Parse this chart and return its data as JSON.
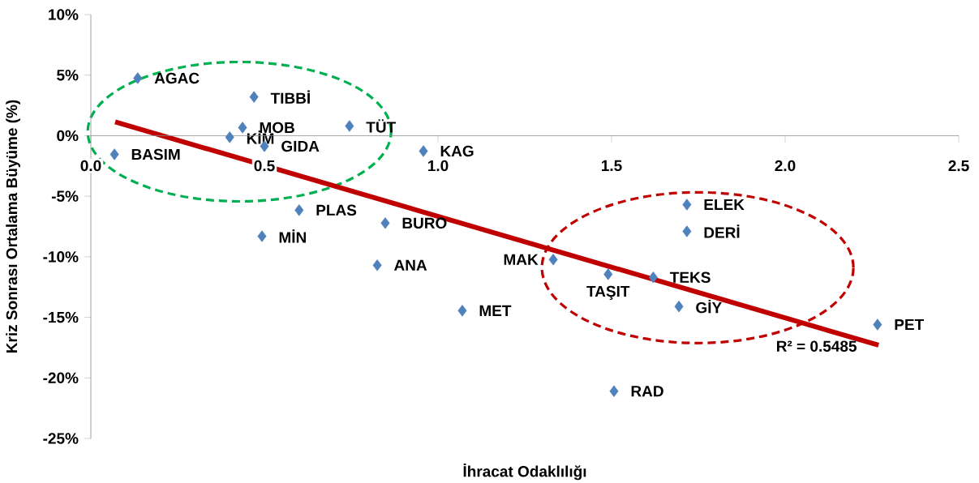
{
  "chart_data": {
    "type": "scatter",
    "xlabel": "İhracat Odaklılığı",
    "ylabel": "Kriz Sonrası Ortalama Büyüme (%)",
    "xlim": [
      0,
      2.5
    ],
    "ylim": [
      -25,
      10
    ],
    "xticks": [
      {
        "value": 0,
        "label": "0.0"
      },
      {
        "value": 0.5,
        "label": "0.5"
      },
      {
        "value": 1,
        "label": "1.0"
      },
      {
        "value": 1.5,
        "label": "1.5"
      },
      {
        "value": 2,
        "label": "2.0"
      },
      {
        "value": 2.5,
        "label": "2.5"
      }
    ],
    "yticks": [
      {
        "value": -25,
        "label": "-25%"
      },
      {
        "value": -20,
        "label": "-20%"
      },
      {
        "value": -15,
        "label": "-15%"
      },
      {
        "value": -10,
        "label": "-10%"
      },
      {
        "value": -5,
        "label": "-5%"
      },
      {
        "value": 0,
        "label": "0%"
      },
      {
        "value": 5,
        "label": "5%"
      },
      {
        "value": 10,
        "label": "10%"
      }
    ],
    "marker": "diamond",
    "series": [
      {
        "type": "scatter",
        "color": "#4f81bd",
        "x": [
          0.135,
          0.47,
          0.437,
          0.4,
          0.5,
          0.745,
          0.958,
          0.068,
          0.6,
          0.848,
          0.493,
          0.825,
          1.07,
          1.332,
          1.49,
          1.62,
          1.717,
          1.717,
          1.694,
          1.507,
          2.266
        ],
        "values": [
          4.75,
          3.2,
          0.67,
          -0.13,
          -0.87,
          0.8,
          -1.27,
          -1.54,
          -6.15,
          -7.22,
          -8.3,
          -10.7,
          -14.45,
          -10.23,
          -11.44,
          -11.7,
          -5.69,
          -7.9,
          -14.1,
          -21.1,
          -15.6
        ]
      },
      {
        "type": "line",
        "marker": "none",
        "color": "#c00000",
        "line_style": "solid",
        "x": [
          0.07,
          2.269
        ],
        "values": [
          1.14,
          -17.3
        ]
      }
    ],
    "annotations": [
      {
        "text": "AGAC",
        "x": 0.135,
        "y": 4.75
      },
      {
        "text": "TIBBİ",
        "x": 0.47,
        "y": 3.2
      },
      {
        "text": "MOB",
        "x": 0.437,
        "y": 0.67
      },
      {
        "text": "KİM",
        "x": 0.4,
        "y": -0.13
      },
      {
        "text": "GIDA",
        "x": 0.5,
        "y": -0.87
      },
      {
        "text": "TÜT",
        "x": 0.745,
        "y": 0.8
      },
      {
        "text": "KAG",
        "x": 0.958,
        "y": -1.27
      },
      {
        "text": "BASIM",
        "x": 0.068,
        "y": -1.54
      },
      {
        "text": "PLAS",
        "x": 0.6,
        "y": -6.15
      },
      {
        "text": "BURO",
        "x": 0.848,
        "y": -7.22
      },
      {
        "text": "MİN",
        "x": 0.493,
        "y": -8.3
      },
      {
        "text": "ANA",
        "x": 0.825,
        "y": -10.7
      },
      {
        "text": "MET",
        "x": 1.07,
        "y": -14.45
      },
      {
        "text": "MAK",
        "x": 1.332,
        "y": -10.23
      },
      {
        "text": "TAŞIT",
        "x": 1.49,
        "y": -11.44
      },
      {
        "text": "TEKS",
        "x": 1.62,
        "y": -11.7
      },
      {
        "text": "ELEK",
        "x": 1.717,
        "y": -5.69
      },
      {
        "text": "DERİ",
        "x": 1.717,
        "y": -7.9
      },
      {
        "text": "GİY",
        "x": 1.694,
        "y": -14.1
      },
      {
        "text": "RAD",
        "x": 1.507,
        "y": -21.1
      },
      {
        "text": "PET",
        "x": 2.266,
        "y": -15.6
      },
      "R² = 0.5485"
    ]
  }
}
